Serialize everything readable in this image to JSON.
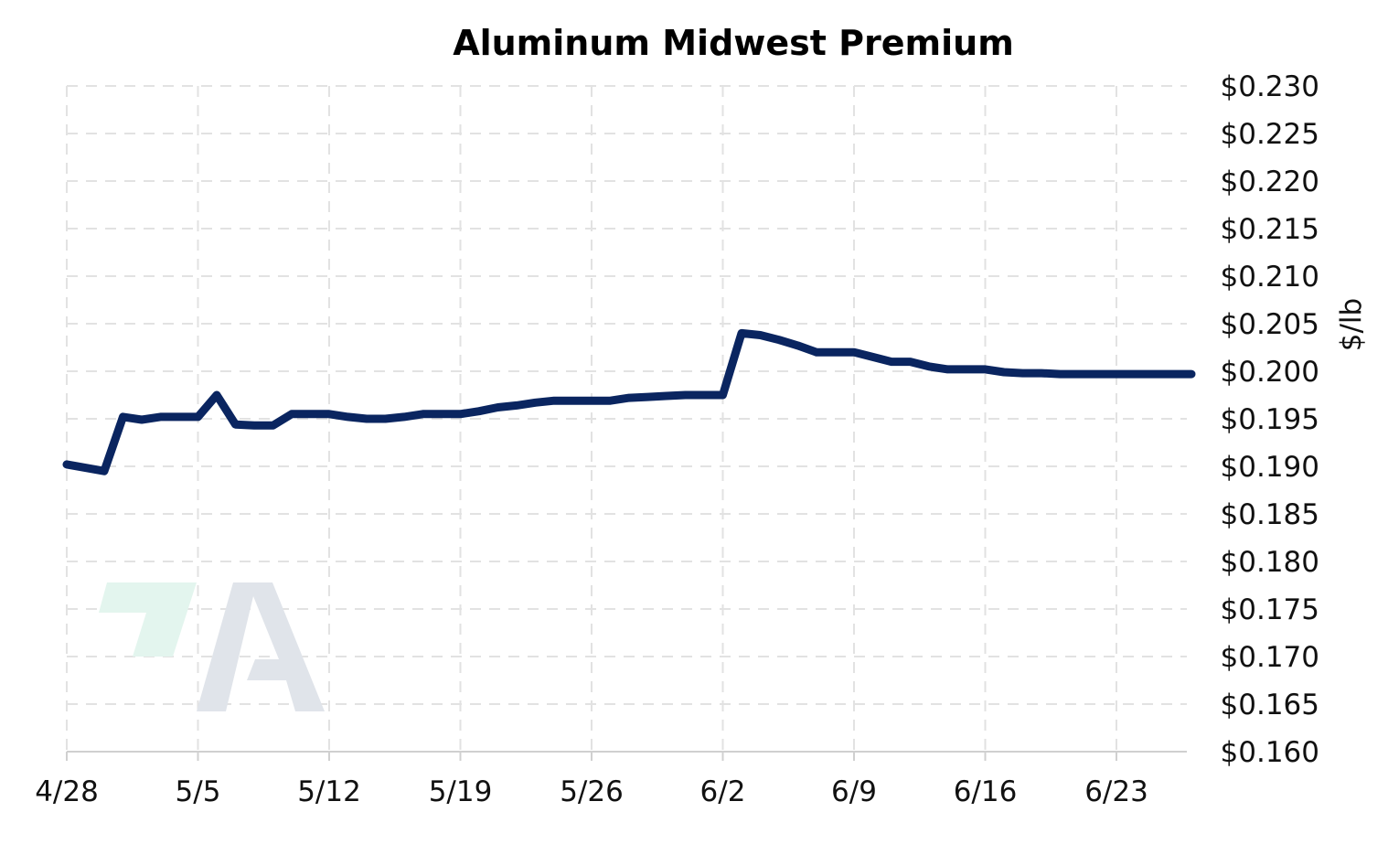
{
  "chart_data": {
    "type": "line",
    "title": "Aluminum Midwest Premium",
    "ylabel": "$/lb",
    "xlabel": "",
    "x_ticks": [
      "4/28",
      "5/5",
      "5/12",
      "5/19",
      "5/26",
      "6/2",
      "6/9",
      "6/16",
      "6/23"
    ],
    "y_ticks": [
      "$0.230",
      "$0.225",
      "$0.220",
      "$0.215",
      "$0.210",
      "$0.205",
      "$0.200",
      "$0.195",
      "$0.190",
      "$0.185",
      "$0.180",
      "$0.175",
      "$0.170",
      "$0.165",
      "$0.160"
    ],
    "ylim": [
      0.16,
      0.23
    ],
    "xlim": [
      "4/28",
      "6/28"
    ],
    "grid": true,
    "legend": "none",
    "y_axis_side": "right",
    "colors": {
      "line": "#0a2560",
      "grid": "#e2e2e2",
      "logo_green": "#e3f5ee",
      "logo_gray": "#e0e4ea"
    },
    "series": [
      {
        "color": "#0a2560",
        "points": [
          [
            "4/28",
            0.1902
          ],
          [
            "4/30",
            0.1895
          ],
          [
            "5/1",
            0.1952
          ],
          [
            "5/2",
            0.1949
          ],
          [
            "5/3",
            0.1952
          ],
          [
            "5/5",
            0.1952
          ],
          [
            "5/6",
            0.1975
          ],
          [
            "5/7",
            0.1944
          ],
          [
            "5/8",
            0.1943
          ],
          [
            "5/9",
            0.1943
          ],
          [
            "5/10",
            0.1955
          ],
          [
            "5/12",
            0.1955
          ],
          [
            "5/13",
            0.1952
          ],
          [
            "5/14",
            0.195
          ],
          [
            "5/15",
            0.195
          ],
          [
            "5/16",
            0.1952
          ],
          [
            "5/17",
            0.1955
          ],
          [
            "5/19",
            0.1955
          ],
          [
            "5/20",
            0.1958
          ],
          [
            "5/21",
            0.1962
          ],
          [
            "5/22",
            0.1964
          ],
          [
            "5/23",
            0.1967
          ],
          [
            "5/24",
            0.1969
          ],
          [
            "5/27",
            0.1969
          ],
          [
            "5/28",
            0.1972
          ],
          [
            "5/29",
            0.1973
          ],
          [
            "5/30",
            0.1974
          ],
          [
            "5/31",
            0.1975
          ],
          [
            "6/2",
            0.1975
          ],
          [
            "6/3",
            0.204
          ],
          [
            "6/4",
            0.2038
          ],
          [
            "6/5",
            0.2033
          ],
          [
            "6/6",
            0.2027
          ],
          [
            "6/7",
            0.202
          ],
          [
            "6/9",
            0.202
          ],
          [
            "6/10",
            0.2015
          ],
          [
            "6/11",
            0.201
          ],
          [
            "6/12",
            0.201
          ],
          [
            "6/13",
            0.2005
          ],
          [
            "6/14",
            0.2002
          ],
          [
            "6/16",
            0.2002
          ],
          [
            "6/17",
            0.1999
          ],
          [
            "6/18",
            0.1998
          ],
          [
            "6/19",
            0.1998
          ],
          [
            "6/20",
            0.1997
          ],
          [
            "6/27",
            0.1997
          ]
        ]
      }
    ]
  },
  "watermark": {
    "name": "logo-watermark",
    "letter": "A"
  }
}
